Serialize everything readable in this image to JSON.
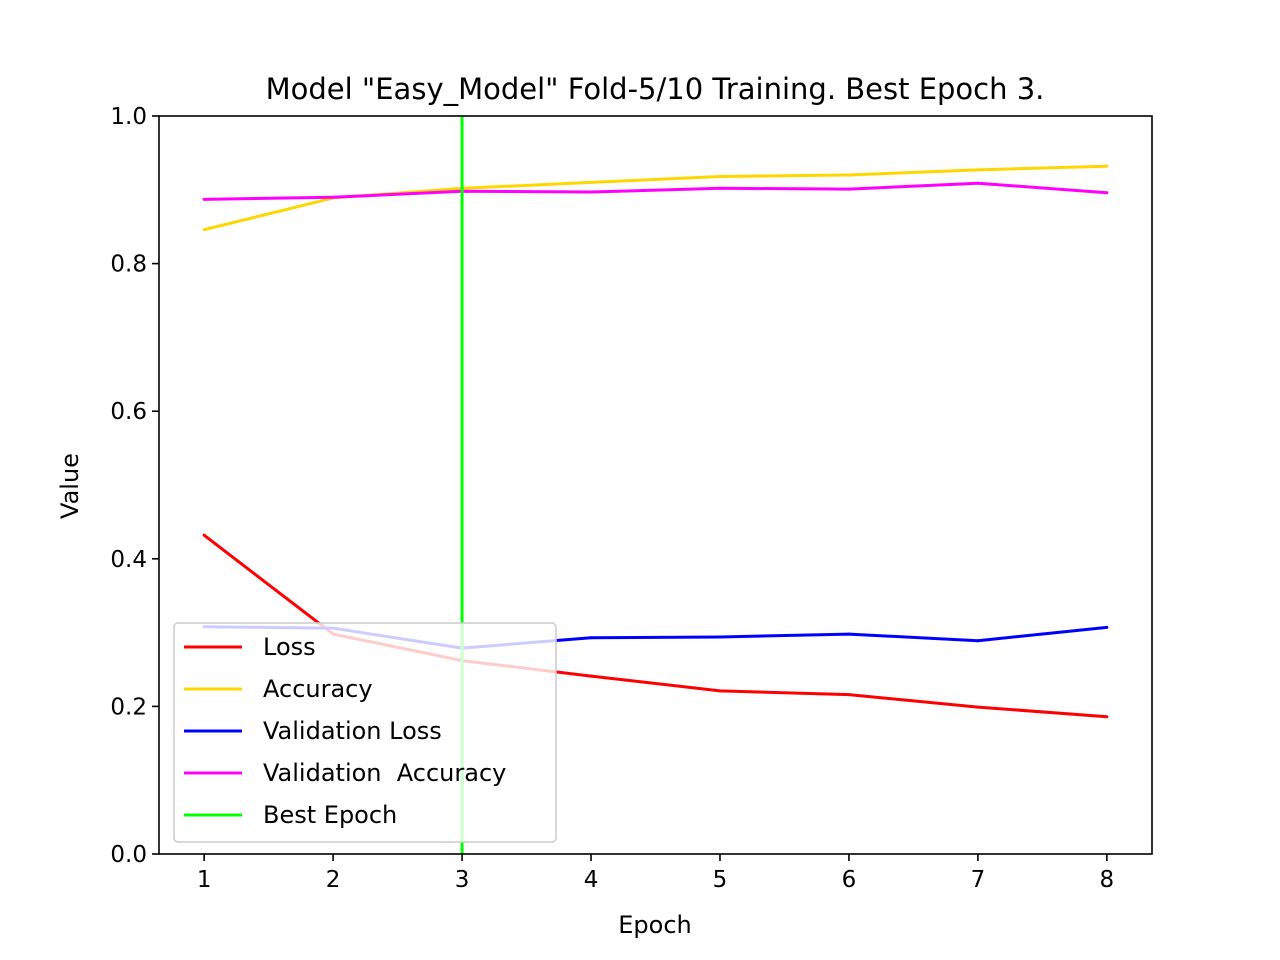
{
  "chart_data": {
    "type": "line",
    "title": "Model \"Easy_Model\" Fold-5/10 Training. Best Epoch 3.",
    "xlabel": "Epoch",
    "ylabel": "Value",
    "x": [
      1,
      2,
      3,
      4,
      5,
      6,
      7,
      8
    ],
    "xlim": [
      0.65,
      8.35
    ],
    "ylim": [
      0.0,
      1.0
    ],
    "xticks": [
      "1",
      "2",
      "3",
      "4",
      "5",
      "6",
      "7",
      "8"
    ],
    "yticks": [
      "0.0",
      "0.2",
      "0.4",
      "0.6",
      "0.8",
      "1.0"
    ],
    "grid": false,
    "legend_position": "lower-left",
    "series": [
      {
        "name": "Loss",
        "color": "#ff0000",
        "values": [
          0.432,
          0.298,
          0.262,
          0.241,
          0.221,
          0.216,
          0.199,
          0.186
        ]
      },
      {
        "name": "Accuracy",
        "color": "#ffd700",
        "values": [
          0.846,
          0.889,
          0.902,
          0.91,
          0.918,
          0.92,
          0.927,
          0.932
        ]
      },
      {
        "name": "Validation Loss",
        "color": "#0000ff",
        "values": [
          0.308,
          0.306,
          0.279,
          0.293,
          0.294,
          0.298,
          0.289,
          0.307
        ]
      },
      {
        "name": "Validation  Accuracy",
        "color": "#ff00ff",
        "values": [
          0.887,
          0.89,
          0.898,
          0.897,
          0.902,
          0.901,
          0.909,
          0.896
        ]
      }
    ],
    "best_epoch": {
      "name": "Best Epoch",
      "color": "#00ff00",
      "x": 3
    }
  }
}
